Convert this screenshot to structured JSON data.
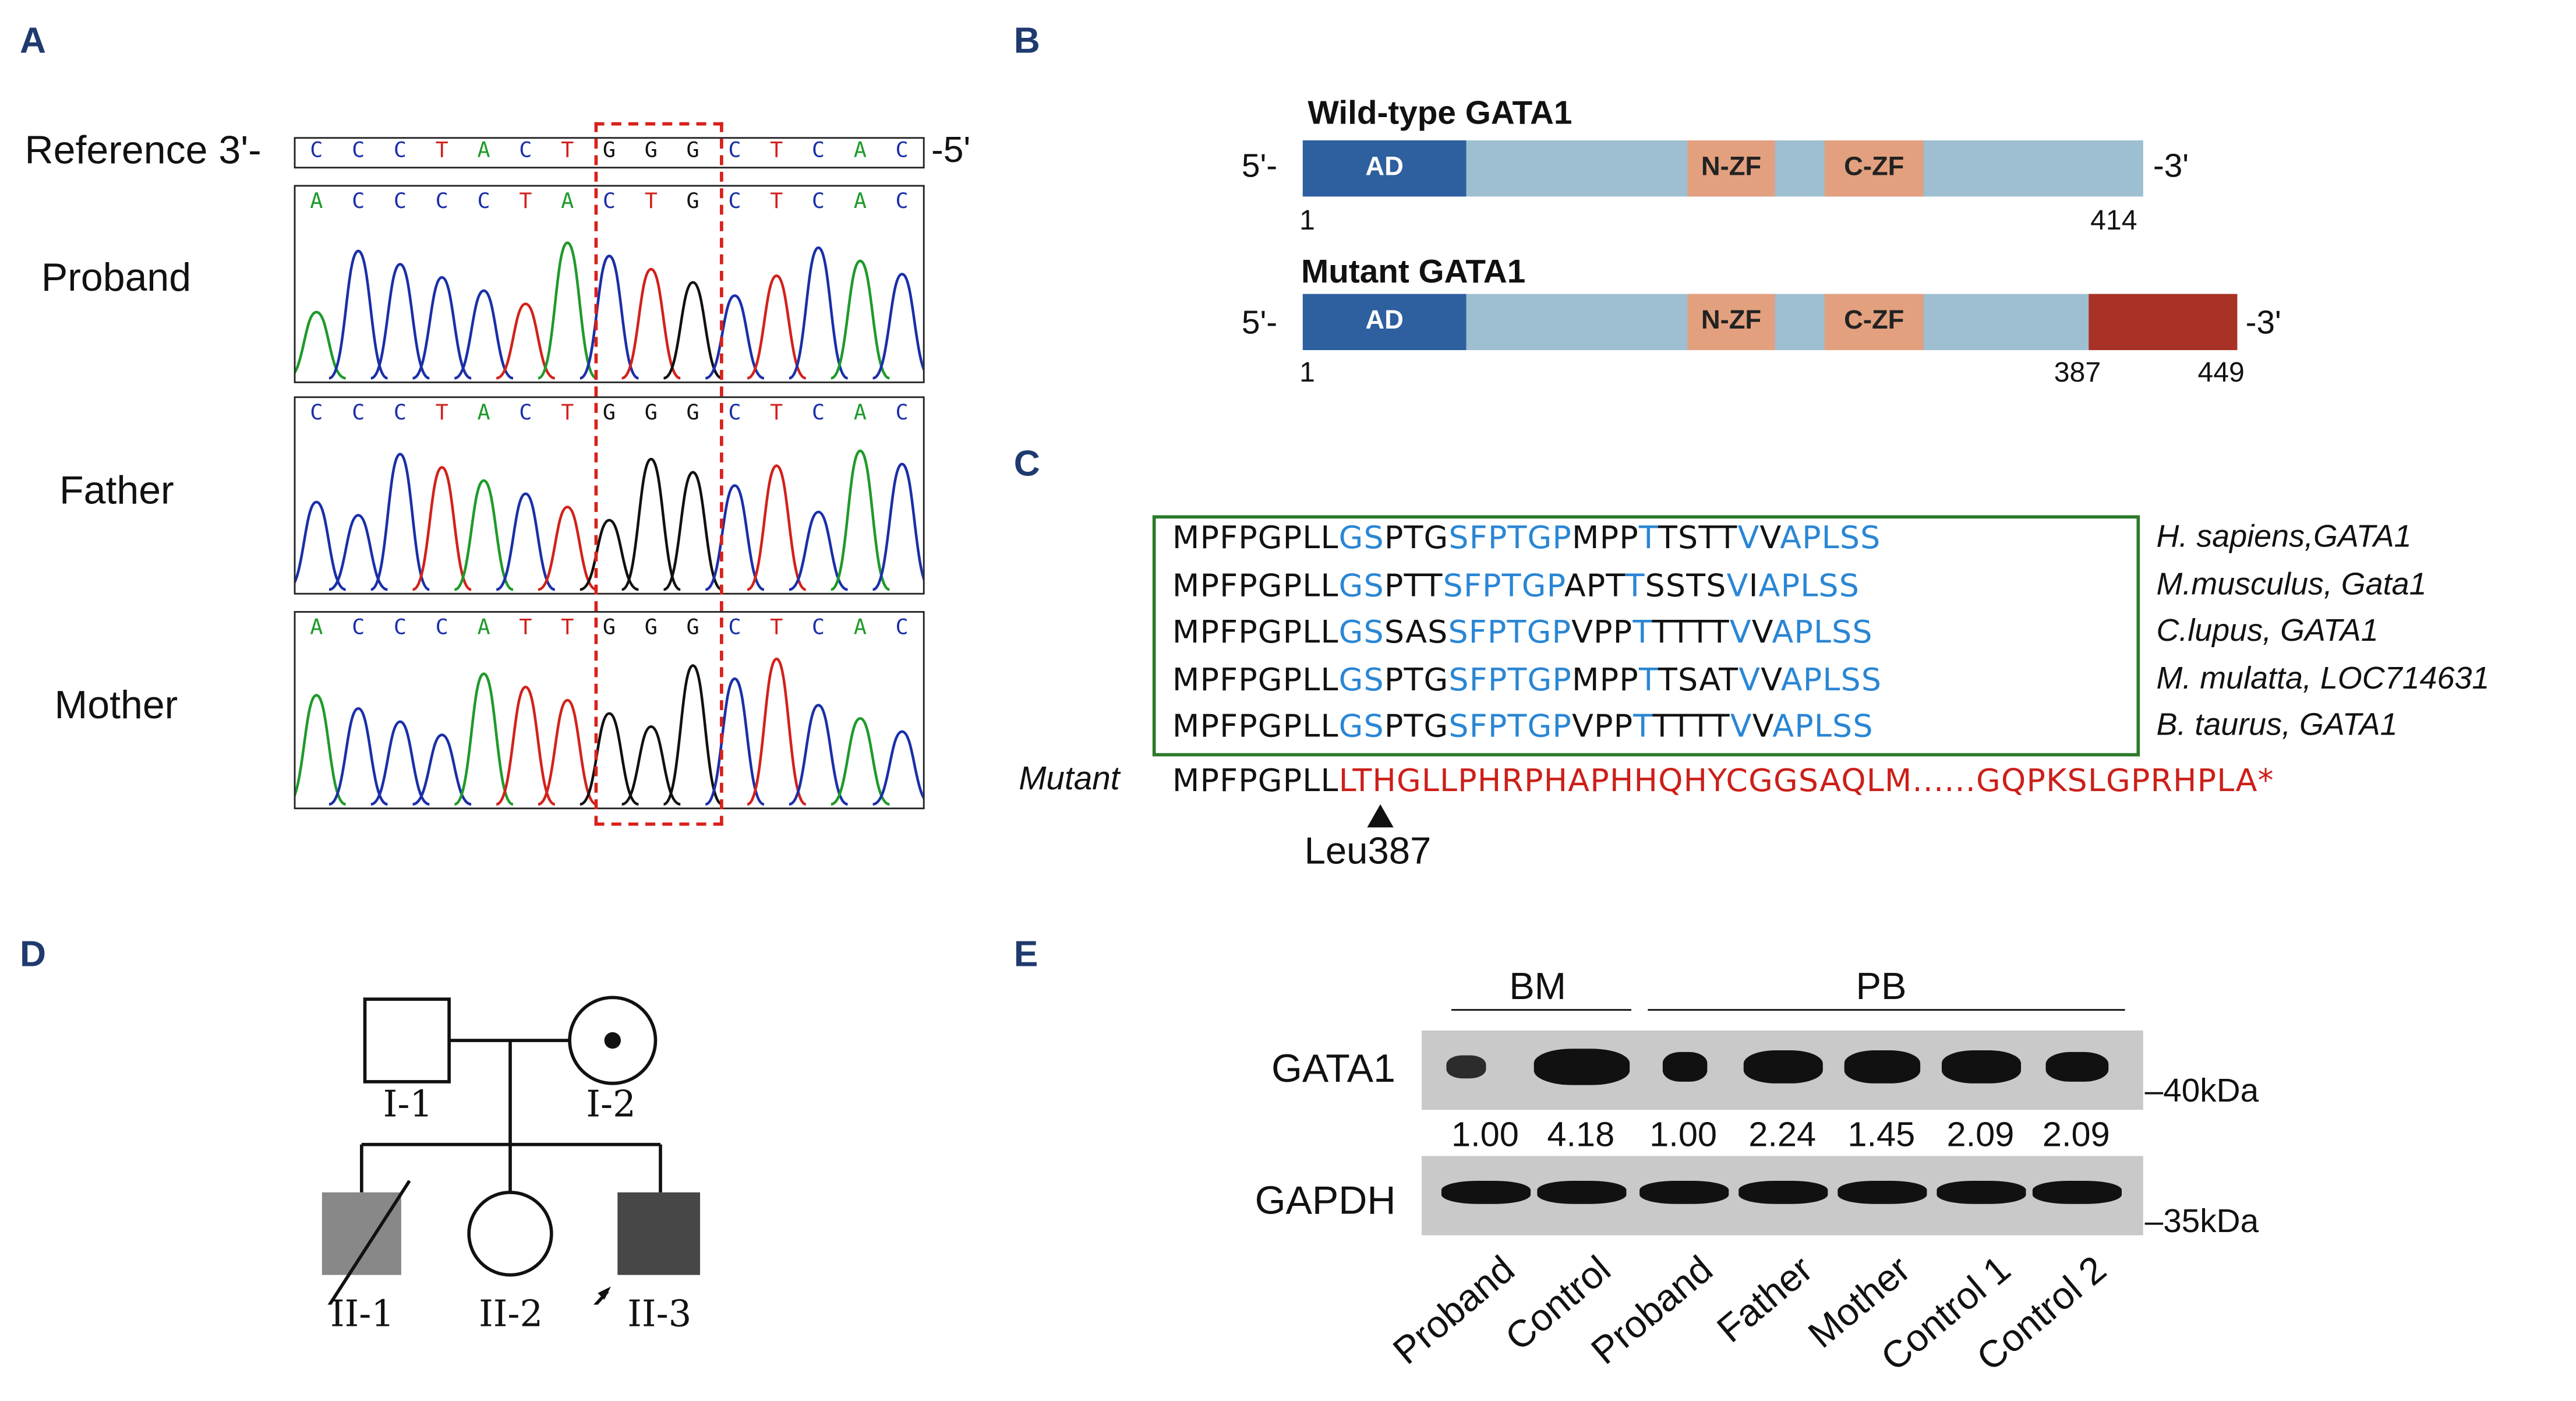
{
  "panels": {
    "a": "A",
    "b": "B",
    "c": "C",
    "d": "D",
    "e": "E"
  },
  "panel_a": {
    "reference_label": "Reference 3'-",
    "reference_end": "-5'",
    "reference_seq": "CCCTACTGGGCTCAC",
    "traces": [
      {
        "label": "Proband",
        "seq": "ACCCCTACTGCTCAC"
      },
      {
        "label": "Father",
        "seq": "CCCTACTGGGCTCAC"
      },
      {
        "label": "Mother",
        "seq": "ACCCATTGGGCTCAC"
      }
    ],
    "base_colors": {
      "A": "#1f9a2a",
      "C": "#1a2fa8",
      "G": "#111111",
      "T": "#d1221b"
    }
  },
  "panel_b": {
    "wild": {
      "title": "Wild-type GATA1",
      "five": "5'-",
      "three": "-3'",
      "start": "1",
      "end": "414",
      "domains": [
        "AD",
        "N-ZF",
        "C-ZF"
      ]
    },
    "mutant": {
      "title": "Mutant GATA1",
      "five": "5'-",
      "three": "-3'",
      "start": "1",
      "mut_start": "387",
      "end": "449",
      "domains": [
        "AD",
        "N-ZF",
        "C-ZF"
      ]
    },
    "colors": {
      "ad": "#2e5f9e",
      "body": "#9dbfd1",
      "zf": "#e2a07f",
      "mut": "#a83226"
    }
  },
  "panel_c": {
    "rows": [
      {
        "species": "H. sapiens,GATA1",
        "segs": [
          [
            "k",
            "MPFPGPLL"
          ],
          [
            "b",
            "GS"
          ],
          [
            "k",
            "PTG"
          ],
          [
            "b",
            "SFPTGP"
          ],
          [
            "k",
            "MPP"
          ],
          [
            "b",
            "T"
          ],
          [
            "k",
            "TSTT"
          ],
          [
            "b",
            "V"
          ],
          [
            "k",
            "V"
          ],
          [
            "b",
            "APLSS"
          ]
        ]
      },
      {
        "species": "M.musculus, Gata1",
        "segs": [
          [
            "k",
            "MPFPGPLL"
          ],
          [
            "b",
            "GS"
          ],
          [
            "k",
            "PTT"
          ],
          [
            "b",
            "SFPTGP"
          ],
          [
            "k",
            "APT"
          ],
          [
            "b",
            "T"
          ],
          [
            "k",
            "SSTS"
          ],
          [
            "b",
            "V"
          ],
          [
            "k",
            "I"
          ],
          [
            "b",
            "APLSS"
          ]
        ]
      },
      {
        "species": "C.lupus, GATA1",
        "segs": [
          [
            "k",
            "MPFPGPLL"
          ],
          [
            "b",
            "GS"
          ],
          [
            "k",
            "SAS"
          ],
          [
            "b",
            "SFPTGP"
          ],
          [
            "k",
            "VPP"
          ],
          [
            "b",
            "T"
          ],
          [
            "k",
            "TTTT"
          ],
          [
            "b",
            "V"
          ],
          [
            "k",
            "V"
          ],
          [
            "b",
            "APLSS"
          ]
        ]
      },
      {
        "species": "M. mulatta, LOC714631",
        "segs": [
          [
            "k",
            "MPFPGPLL"
          ],
          [
            "b",
            "GS"
          ],
          [
            "k",
            "PTG"
          ],
          [
            "b",
            "SFPTGP"
          ],
          [
            "k",
            "MPP"
          ],
          [
            "b",
            "T"
          ],
          [
            "k",
            "TSAT"
          ],
          [
            "b",
            "V"
          ],
          [
            "k",
            "V"
          ],
          [
            "b",
            "APLSS"
          ]
        ]
      },
      {
        "species": "B. taurus, GATA1",
        "segs": [
          [
            "k",
            "MPFPGPLL"
          ],
          [
            "b",
            "GS"
          ],
          [
            "k",
            "PTG"
          ],
          [
            "b",
            "SFPTGP"
          ],
          [
            "k",
            "VPP"
          ],
          [
            "b",
            "T"
          ],
          [
            "k",
            "TTTT"
          ],
          [
            "b",
            "V"
          ],
          [
            "k",
            "V"
          ],
          [
            "b",
            "APLSS"
          ]
        ]
      }
    ],
    "mutant_label": "Mutant",
    "mutant_seq_normal": "MPFPGPLL",
    "mutant_seq_frameshift": "LTHGLLPHRPHAPHHQHYCGGSAQLM......GQPKSLGPRHPLA*",
    "marker": "Leu387"
  },
  "panel_d": {
    "labels": [
      "I-1",
      "I-2",
      "II-1",
      "II-2",
      "II-3"
    ]
  },
  "panel_e": {
    "groups": [
      "BM",
      "PB"
    ],
    "rows": [
      "GATA1",
      "GAPDH"
    ],
    "markers": [
      "–40kDa",
      "–35kDa"
    ],
    "lanes": [
      "Proband",
      "Control",
      "Proband",
      "Father",
      "Mother",
      "Control 1",
      "Control 2"
    ],
    "ratios": [
      "1.00",
      "4.18",
      "1.00",
      "2.24",
      "1.45",
      "2.09",
      "2.09"
    ]
  }
}
